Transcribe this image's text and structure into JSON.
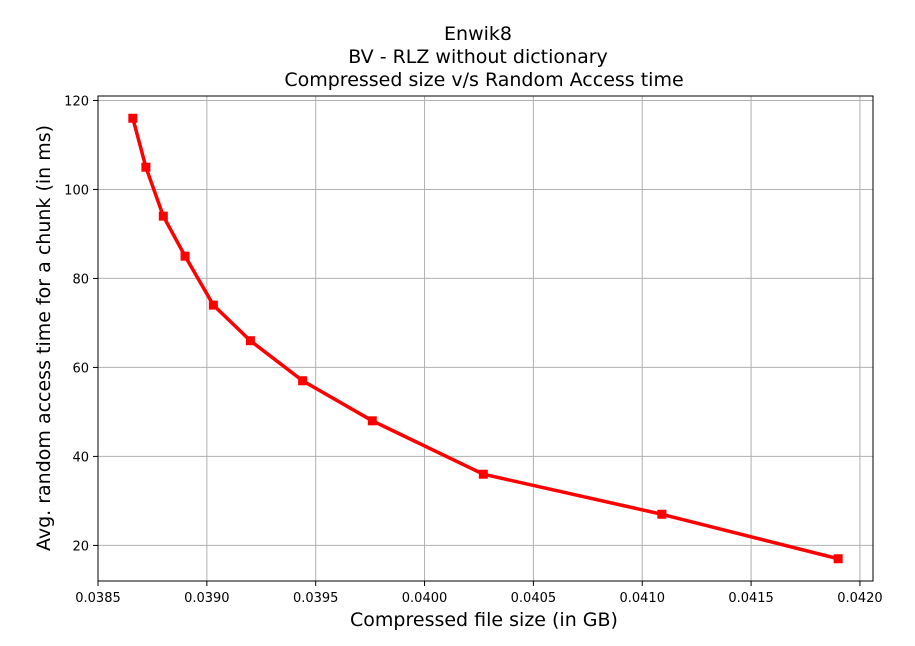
{
  "chart_data": {
    "type": "line",
    "title": [
      "Enwik8",
      "BV - RLZ without dictionary",
      "Compressed size v/s Random Access time"
    ],
    "xlabel": "Compressed file size (in GB)",
    "ylabel": "Avg. random access time for a chunk (in ms)",
    "xlim": [
      0.0385,
      0.04206
    ],
    "ylim": [
      12,
      121
    ],
    "xticks": [
      0.0385,
      0.039,
      0.0395,
      0.04,
      0.0405,
      0.041,
      0.0415,
      0.042
    ],
    "xtick_labels": [
      "0.0385",
      "0.0390",
      "0.0395",
      "0.0400",
      "0.0405",
      "0.0410",
      "0.0415",
      "0.0420"
    ],
    "yticks": [
      20,
      40,
      60,
      80,
      100,
      120
    ],
    "ytick_labels": [
      "20",
      "40",
      "60",
      "80",
      "100",
      "120"
    ],
    "grid": true,
    "series": [
      {
        "color": "#ff0000",
        "marker": "square",
        "x": [
          0.03866,
          0.03872,
          0.0388,
          0.0389,
          0.03903,
          0.0392,
          0.03944,
          0.03976,
          0.04027,
          0.04109,
          0.0419
        ],
        "y": [
          116,
          105,
          94,
          85,
          74,
          66,
          57,
          48,
          36,
          27,
          17
        ]
      }
    ]
  }
}
